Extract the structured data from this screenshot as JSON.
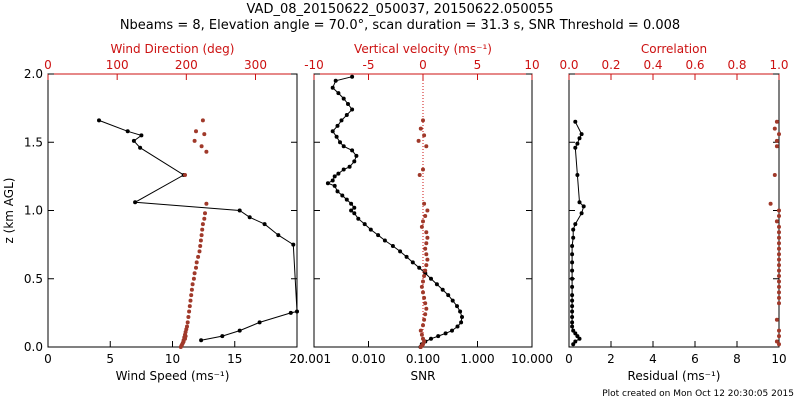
{
  "figure": {
    "title_line1": "VAD_08_20150622_050037, 20150622.050055",
    "title_line2": "Nbeams = 8, Elevation angle = 70.0°, scan duration = 31.3 s, SNR Threshold = 0.008",
    "credit": "Plot created on Mon Oct 12 20:30:05 2015",
    "colors": {
      "black": "#000000",
      "red": "#cc1111",
      "redmark": "#a0392a"
    }
  },
  "chart_data": [
    {
      "type": "scatter",
      "ylabel": "z (km AGL)",
      "ylim": [
        0,
        2.0
      ],
      "yticks": [
        "0.0",
        "0.5",
        "1.0",
        "1.5",
        "2.0"
      ],
      "bottom_axis": {
        "label": "Wind Speed (ms⁻¹)",
        "range": [
          0,
          20
        ],
        "ticks": [
          "0",
          "5",
          "10",
          "15",
          "20"
        ]
      },
      "top_axis": {
        "label": "Wind Direction (deg)",
        "range": [
          0,
          360
        ],
        "ticks": [
          "0",
          "100",
          "200",
          "300"
        ]
      },
      "series": [
        {
          "name": "Wind Speed",
          "axis": "bottom",
          "color": "#000000",
          "x": [
            4.1,
            6.4,
            7.5,
            6.9,
            7.4,
            10.9,
            7.0,
            15.4,
            16.2,
            17.4,
            18.5,
            19.7,
            20.0,
            19.5,
            17.0,
            15.4,
            14.0,
            12.3
          ],
          "y": [
            1.66,
            1.58,
            1.55,
            1.51,
            1.46,
            1.26,
            1.06,
            1.0,
            0.95,
            0.9,
            0.82,
            0.75,
            0.26,
            0.25,
            0.18,
            0.12,
            0.08,
            0.05
          ]
        },
        {
          "name": "Wind Direction",
          "axis": "top",
          "color": "#a0392a",
          "x": [
            224,
            214,
            226,
            212,
            222,
            229,
            198,
            229,
            227,
            226,
            224,
            223,
            222,
            221,
            220,
            219,
            217,
            215,
            214,
            212,
            211,
            209,
            208,
            207,
            206,
            205,
            204,
            203,
            202,
            201,
            200,
            199,
            198,
            197,
            196,
            195,
            193,
            192,
            194,
            196,
            198,
            199
          ],
          "y": [
            1.66,
            1.58,
            1.56,
            1.51,
            1.47,
            1.43,
            1.26,
            1.05,
            0.98,
            0.94,
            0.9,
            0.86,
            0.82,
            0.78,
            0.74,
            0.7,
            0.66,
            0.62,
            0.58,
            0.54,
            0.5,
            0.46,
            0.42,
            0.38,
            0.34,
            0.3,
            0.26,
            0.22,
            0.18,
            0.15,
            0.13,
            0.11,
            0.09,
            0.07,
            0.05,
            0.03,
            0.01,
            0.0,
            0.02,
            0.04,
            0.06,
            0.08
          ]
        }
      ]
    },
    {
      "type": "scatter",
      "ylim": [
        0,
        2.0
      ],
      "bottom_axis": {
        "label": "SNR",
        "scale": "log",
        "range": [
          0.001,
          10
        ],
        "ticks": [
          "0.001",
          "0.010",
          "0.100",
          "1.000",
          "10.000"
        ]
      },
      "top_axis": {
        "label": "Vertical velocity (ms⁻¹)",
        "range": [
          -10,
          10
        ],
        "ticks": [
          "-10",
          "-5",
          "0",
          "5",
          "10"
        ]
      },
      "series": [
        {
          "name": "SNR",
          "axis": "bottom",
          "color": "#000000",
          "x": [
            0.005,
            0.0025,
            0.0022,
            0.0028,
            0.0035,
            0.0042,
            0.005,
            0.004,
            0.0032,
            0.0027,
            0.0022,
            0.0026,
            0.003,
            0.0035,
            0.005,
            0.006,
            0.0055,
            0.0045,
            0.0035,
            0.0028,
            0.0024,
            0.0022,
            0.0018,
            0.0024,
            0.0027,
            0.0033,
            0.004,
            0.0048,
            0.0055,
            0.0048,
            0.0055,
            0.0065,
            0.0085,
            0.011,
            0.015,
            0.02,
            0.028,
            0.038,
            0.05,
            0.065,
            0.085,
            0.11,
            0.14,
            0.18,
            0.23,
            0.29,
            0.35,
            0.42,
            0.48,
            0.52,
            0.5,
            0.43,
            0.34,
            0.26,
            0.19,
            0.14,
            0.11,
            0.095,
            0.09
          ],
          "y": [
            1.98,
            1.95,
            1.9,
            1.86,
            1.82,
            1.78,
            1.74,
            1.7,
            1.66,
            1.62,
            1.58,
            1.54,
            1.5,
            1.47,
            1.44,
            1.4,
            1.36,
            1.32,
            1.3,
            1.27,
            1.25,
            1.22,
            1.2,
            1.18,
            1.14,
            1.11,
            1.08,
            1.05,
            1.02,
            1.0,
            0.98,
            0.94,
            0.9,
            0.86,
            0.82,
            0.78,
            0.74,
            0.7,
            0.66,
            0.62,
            0.58,
            0.54,
            0.5,
            0.46,
            0.42,
            0.38,
            0.34,
            0.3,
            0.26,
            0.22,
            0.18,
            0.15,
            0.12,
            0.1,
            0.08,
            0.06,
            0.04,
            0.02,
            0.0
          ]
        },
        {
          "name": "Vertical velocity",
          "axis": "top",
          "color": "#a0392a",
          "x": [
            0.0,
            -0.2,
            0.1,
            -0.4,
            0.3,
            0.0,
            -0.3,
            0.1,
            0.4,
            0.2,
            0.0,
            -0.1,
            0.3,
            0.4,
            0.3,
            0.2,
            0.3,
            0.4,
            0.3,
            0.2,
            0.1,
            0.0,
            -0.1,
            0.0,
            0.1,
            0.2,
            0.3,
            0.2,
            0.1,
            0.0,
            -0.2,
            -0.1,
            0.0,
            0.1,
            0.0,
            -0.1,
            -0.2
          ],
          "y": [
            1.66,
            1.6,
            1.55,
            1.51,
            1.47,
            1.3,
            1.26,
            1.05,
            1.0,
            0.96,
            0.92,
            0.88,
            0.84,
            0.8,
            0.76,
            0.72,
            0.68,
            0.64,
            0.6,
            0.56,
            0.52,
            0.48,
            0.44,
            0.4,
            0.36,
            0.32,
            0.28,
            0.24,
            0.2,
            0.16,
            0.12,
            0.09,
            0.06,
            0.04,
            0.02,
            0.01,
            0.0
          ]
        }
      ]
    },
    {
      "type": "scatter",
      "ylim": [
        0,
        2.0
      ],
      "bottom_axis": {
        "label": "Residual (ms⁻¹)",
        "range": [
          0,
          10
        ],
        "ticks": [
          "0",
          "2",
          "4",
          "6",
          "8",
          "10"
        ]
      },
      "top_axis": {
        "label": "Correlation",
        "range": [
          0,
          1
        ],
        "ticks": [
          "0.0",
          "0.2",
          "0.4",
          "0.6",
          "0.8",
          "1.0"
        ]
      },
      "series": [
        {
          "name": "Residual",
          "axis": "bottom",
          "color": "#000000",
          "x": [
            0.3,
            0.6,
            0.5,
            0.4,
            0.3,
            0.4,
            0.5,
            0.7,
            0.6,
            0.3,
            0.2,
            0.2,
            0.15,
            0.15,
            0.15,
            0.15,
            0.15,
            0.15,
            0.15,
            0.15,
            0.15,
            0.15,
            0.15,
            0.15,
            0.15,
            0.2,
            0.3,
            0.4,
            0.5,
            0.3,
            0.2
          ],
          "y": [
            1.65,
            1.56,
            1.53,
            1.49,
            1.46,
            1.26,
            1.06,
            1.03,
            0.98,
            0.9,
            0.86,
            0.8,
            0.74,
            0.68,
            0.62,
            0.56,
            0.5,
            0.44,
            0.38,
            0.34,
            0.3,
            0.26,
            0.22,
            0.18,
            0.15,
            0.12,
            0.1,
            0.08,
            0.06,
            0.04,
            0.02
          ]
        },
        {
          "name": "Correlation",
          "axis": "top",
          "color": "#a0392a",
          "x": [
            0.99,
            0.98,
            1.0,
            0.99,
            0.99,
            0.98,
            0.96,
            1.0,
            1.0,
            0.99,
            1.0,
            1.0,
            1.0,
            1.0,
            1.0,
            1.0,
            1.0,
            1.0,
            1.0,
            1.0,
            1.0,
            1.0,
            1.0,
            1.0,
            1.0,
            0.99,
            1.0,
            1.0,
            0.99,
            1.0
          ],
          "y": [
            1.65,
            1.6,
            1.56,
            1.51,
            1.47,
            1.26,
            1.05,
            1.0,
            0.96,
            0.92,
            0.88,
            0.84,
            0.8,
            0.76,
            0.72,
            0.68,
            0.64,
            0.6,
            0.56,
            0.52,
            0.48,
            0.44,
            0.4,
            0.36,
            0.32,
            0.2,
            0.12,
            0.08,
            0.04,
            0.02
          ]
        }
      ]
    }
  ]
}
